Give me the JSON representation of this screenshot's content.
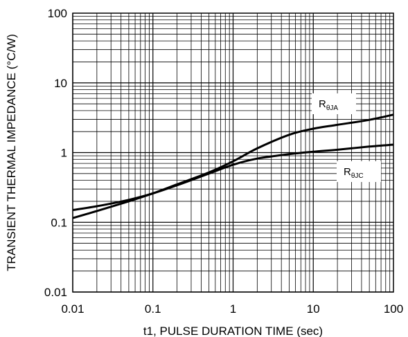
{
  "chart_data": {
    "type": "line",
    "title": "",
    "xlabel": "t1, PULSE DURATION TIME (sec)",
    "ylabel": "TRANSIENT THERMAL IMPEDANCE (°C/W)",
    "x_scale": "log",
    "y_scale": "log",
    "xlim": [
      0.01,
      100
    ],
    "ylim": [
      0.01,
      100
    ],
    "grid": true,
    "x_ticks": [
      0.01,
      0.1,
      1,
      10,
      100
    ],
    "x_tick_labels": [
      "0.01",
      "0.1",
      "1",
      "10",
      "100"
    ],
    "y_ticks": [
      0.01,
      0.1,
      1,
      10,
      100
    ],
    "y_tick_labels": [
      "0.01",
      "0.1",
      "1",
      "10",
      "100"
    ],
    "series": [
      {
        "label_main": "R",
        "label_sub": "θJA",
        "x": [
          0.01,
          0.02,
          0.05,
          0.1,
          0.2,
          0.5,
          1,
          2,
          5,
          10,
          20,
          50,
          100
        ],
        "y": [
          0.115,
          0.145,
          0.2,
          0.26,
          0.35,
          0.52,
          0.75,
          1.15,
          1.8,
          2.2,
          2.5,
          2.95,
          3.5
        ]
      },
      {
        "label_main": "R",
        "label_sub": "θJC",
        "x": [
          0.01,
          0.02,
          0.05,
          0.1,
          0.2,
          0.5,
          1,
          2,
          5,
          10,
          20,
          50,
          100
        ],
        "y": [
          0.15,
          0.17,
          0.21,
          0.26,
          0.34,
          0.5,
          0.67,
          0.82,
          0.95,
          1.03,
          1.1,
          1.22,
          1.3
        ]
      }
    ]
  }
}
